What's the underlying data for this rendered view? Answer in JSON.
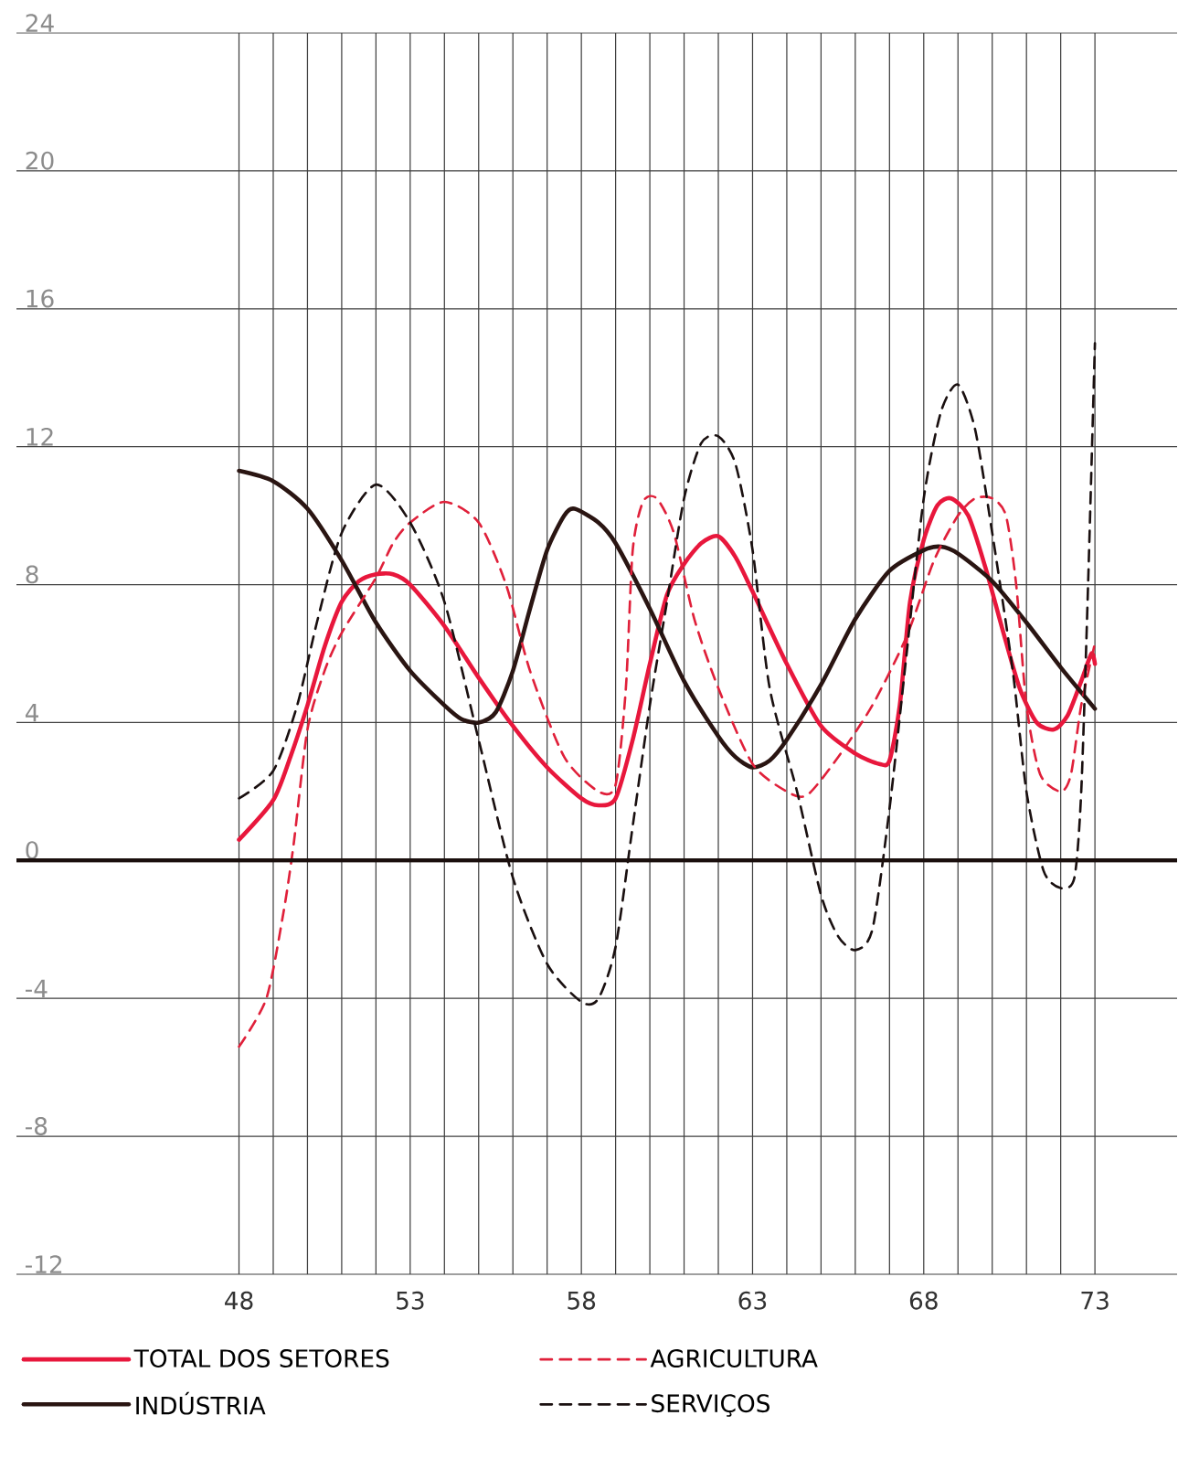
{
  "chart_data": {
    "type": "line",
    "xlim": [
      41.5,
      75.4
    ],
    "ylim": [
      -12,
      24
    ],
    "xticks": [
      48,
      {
        "value": 49,
        "label": null
      },
      {
        "value": 50,
        "label": null
      },
      {
        "value": 51,
        "label": null
      },
      {
        "value": 52,
        "label": null
      },
      53,
      {
        "value": 54,
        "label": null
      },
      {
        "value": 55,
        "label": null
      },
      {
        "value": 56,
        "label": null
      },
      {
        "value": 57,
        "label": null
      },
      58,
      {
        "value": 59,
        "label": null
      },
      {
        "value": 60,
        "label": null
      },
      {
        "value": 61,
        "label": null
      },
      {
        "value": 62,
        "label": null
      },
      63,
      {
        "value": 64,
        "label": null
      },
      {
        "value": 65,
        "label": null
      },
      {
        "value": 66,
        "label": null
      },
      {
        "value": 67,
        "label": null
      },
      68,
      {
        "value": 69,
        "label": null
      },
      {
        "value": 70,
        "label": null
      },
      {
        "value": 71,
        "label": null
      },
      {
        "value": 72,
        "label": null
      },
      73
    ],
    "yticks": [
      -12,
      -8,
      -4,
      0,
      4,
      8,
      12,
      16,
      20,
      24
    ],
    "grid": true,
    "legend": "bottom",
    "ref_lines": [
      {
        "axis": "y",
        "value": 0,
        "color": "#1a0f0d"
      }
    ],
    "series": [
      {
        "name": "TOTAL DOS SETORES",
        "color": "#e8173c",
        "line_style": "solid",
        "x": [
          48,
          49,
          49.5,
          50,
          50.5,
          51,
          51.5,
          52,
          52.5,
          53,
          54,
          55,
          56,
          57,
          58,
          58.5,
          59,
          59.5,
          60,
          60.5,
          61,
          61.5,
          62,
          62.5,
          63,
          64,
          65,
          66,
          66.7,
          67,
          67.3,
          67.6,
          68,
          68.4,
          68.8,
          69.3,
          69.8,
          70.3,
          70.8,
          71.3,
          71.8,
          72.2,
          72.6,
          72.9,
          73
        ],
        "values": [
          0.6,
          1.75,
          3,
          4.5,
          6.2,
          7.5,
          8.1,
          8.3,
          8.3,
          8,
          6.8,
          5.3,
          3.9,
          2.7,
          1.8,
          1.6,
          1.8,
          3.5,
          5.7,
          7.7,
          8.6,
          9.2,
          9.4,
          8.8,
          7.8,
          5.7,
          3.9,
          3.1,
          2.8,
          2.9,
          4.5,
          7.5,
          9.3,
          10.3,
          10.5,
          10,
          8.5,
          6.7,
          5,
          4,
          3.8,
          4.2,
          5.2,
          6,
          5.7
        ]
      },
      {
        "name": "INDÚSTRIA",
        "color": "#2a1512",
        "line_style": "solid",
        "x": [
          48,
          49,
          50,
          51,
          52,
          53,
          54,
          54.5,
          55,
          55.5,
          56,
          56.5,
          57,
          57.5,
          57.8,
          58.5,
          59,
          60,
          61,
          62,
          62.5,
          63,
          63.5,
          64,
          65,
          66,
          67,
          68,
          68.5,
          69,
          70,
          71,
          72,
          73
        ],
        "values": [
          11.3,
          11,
          10.2,
          8.7,
          6.9,
          5.5,
          4.5,
          4.1,
          4,
          4.3,
          5.5,
          7.3,
          9,
          10,
          10.2,
          9.8,
          9.2,
          7.3,
          5.2,
          3.6,
          3,
          2.7,
          2.9,
          3.5,
          5.1,
          7,
          8.4,
          9,
          9.1,
          8.9,
          8.1,
          6.9,
          5.6,
          4.4
        ]
      },
      {
        "name": "AGRICULTURA",
        "color": "#e0203a",
        "line_style": "dashed",
        "x": [
          48,
          48.8,
          49.3,
          49.6,
          50,
          50.5,
          51,
          52,
          52.5,
          53,
          54,
          55,
          55.8,
          56.5,
          57.5,
          58.5,
          59,
          59.3,
          59.5,
          59.8,
          60.2,
          60.7,
          61.3,
          62,
          63,
          64,
          64.6,
          65.5,
          66.5,
          67.5,
          68.3,
          69,
          69.5,
          70,
          70.4,
          70.7,
          71,
          71.4,
          72,
          72.3,
          72.6,
          73
        ],
        "values": [
          -5.4,
          -4,
          -1.5,
          0.5,
          3.8,
          5.5,
          6.6,
          8.2,
          9.2,
          9.8,
          10.4,
          9.8,
          8,
          5.5,
          3,
          2,
          2.2,
          5,
          9,
          10.4,
          10.5,
          9.5,
          7,
          5,
          2.8,
          2,
          1.9,
          3,
          4.5,
          6.5,
          8.7,
          10,
          10.5,
          10.5,
          10,
          8,
          4.5,
          2.5,
          2,
          2.5,
          4.5,
          6.3
        ]
      },
      {
        "name": "SERVIÇOS",
        "color": "#1a1010",
        "line_style": "dashed",
        "x": [
          48,
          49,
          49.7,
          50.3,
          51,
          52,
          53,
          54,
          55,
          56,
          57,
          58,
          58.5,
          59,
          59.5,
          60,
          60.5,
          61,
          61.5,
          62,
          62.5,
          63,
          63.5,
          64.3,
          65,
          65.5,
          66,
          66.5,
          67,
          67.5,
          68,
          68.5,
          69,
          69.5,
          70,
          70.6,
          71,
          71.5,
          72,
          72.4,
          72.6,
          72.8,
          73
        ],
        "values": [
          1.8,
          2.6,
          4.5,
          7,
          9.5,
          10.9,
          9.8,
          7.5,
          3.5,
          -0.5,
          -3,
          -4.1,
          -4,
          -2.5,
          1,
          4.5,
          7.5,
          10.5,
          12.1,
          12.3,
          11.5,
          9,
          5,
          2,
          -1,
          -2.2,
          -2.6,
          -2,
          1.5,
          6,
          10.5,
          13,
          13.8,
          12.5,
          9.5,
          5.5,
          2,
          -0.3,
          -0.8,
          -0.5,
          2,
          8,
          15
        ]
      }
    ]
  }
}
